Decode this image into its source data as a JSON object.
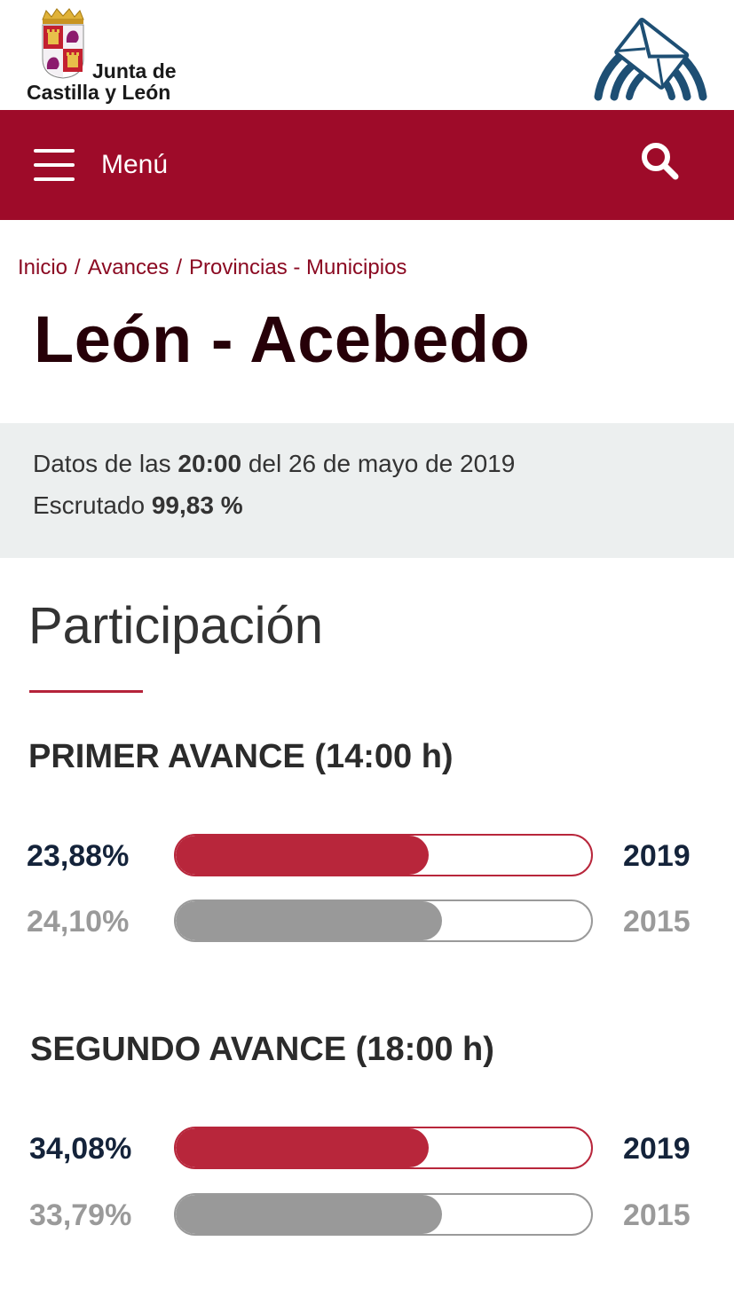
{
  "header": {
    "brand_line1": "Junta de",
    "brand_line2": "Castilla y León"
  },
  "navbar": {
    "menu_label": "Menú"
  },
  "breadcrumb": {
    "items": [
      "Inicio",
      "Avances",
      "Provincias - Municipios"
    ],
    "separator": "/"
  },
  "page": {
    "title": "León - Acebedo"
  },
  "info": {
    "data_prefix": "Datos de las",
    "data_time": "20:00",
    "data_suffix": "del 26 de mayo de 2019",
    "scrutiny_label": "Escrutado",
    "scrutiny_value": "99,83 %"
  },
  "section": {
    "title": "Participación"
  },
  "avances": [
    {
      "title": "PRIMER AVANCE  (14:00 h)",
      "rows": [
        {
          "pct": "23,88%",
          "year": "2019",
          "fill": 0.61
        },
        {
          "pct": "24,10%",
          "year": "2015",
          "fill": 0.64
        }
      ]
    },
    {
      "title": "SEGUNDO AVANCE  (18:00 h)",
      "rows": [
        {
          "pct": "34,08%",
          "year": "2019",
          "fill": 0.61
        },
        {
          "pct": "33,79%",
          "year": "2015",
          "fill": 0.64
        }
      ]
    }
  ],
  "colors": {
    "brand": "#9e0b29",
    "bar_current": "#b8263b",
    "bar_previous": "#999999"
  },
  "icons": {
    "menu": "hamburger-icon",
    "search": "search-icon",
    "mail_logo": "envelope-logo-icon",
    "shield": "coat-of-arms-icon"
  }
}
